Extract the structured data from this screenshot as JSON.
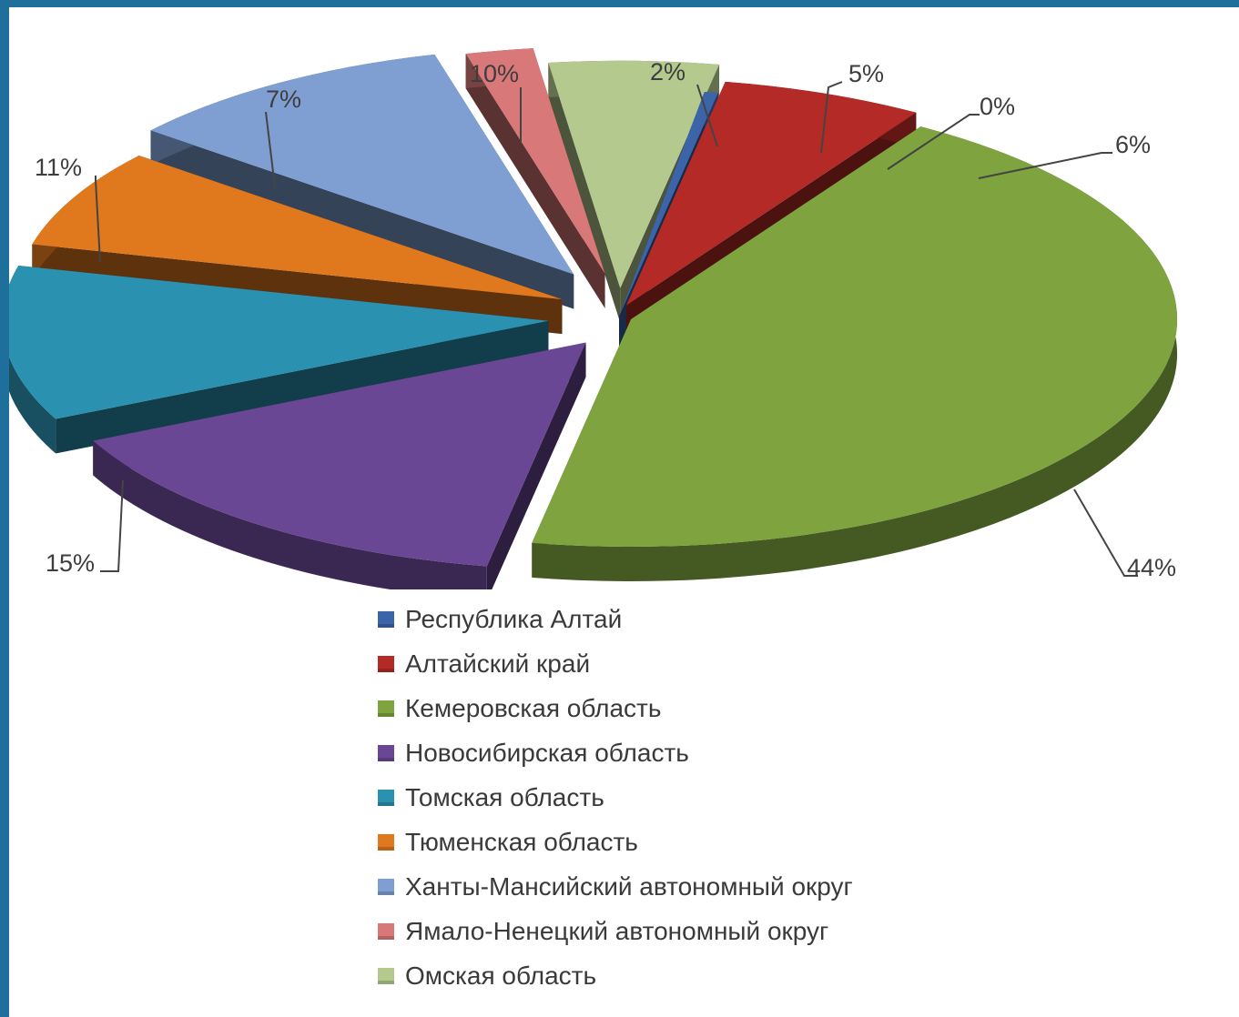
{
  "chart_data": {
    "type": "pie",
    "title": "",
    "series": [
      {
        "name": "Республика Алтай",
        "value": 0,
        "label": "0%",
        "color": "#3c64a8"
      },
      {
        "name": "Алтайский край",
        "value": 6,
        "label": "6%",
        "color": "#b42a26"
      },
      {
        "name": "Кемеровская область",
        "value": 44,
        "label": "44%",
        "color": "#7ea33f"
      },
      {
        "name": "Новосибирская область",
        "value": 15,
        "label": "15%",
        "color": "#6a4795"
      },
      {
        "name": "Томская область",
        "value": 11,
        "label": "11%",
        "color": "#2b91b0"
      },
      {
        "name": "Тюменская область",
        "value": 7,
        "label": "7%",
        "color": "#e0781e"
      },
      {
        "name": "Ханты-Мансийский автономный округ",
        "value": 10,
        "label": "10%",
        "color": "#7f9fd2"
      },
      {
        "name": "Ямало-Ненецкий автономный округ",
        "value": 2,
        "label": "2%",
        "color": "#d97878"
      },
      {
        "name": "Омская область",
        "value": 5,
        "label": "5%",
        "color": "#b4c98e"
      }
    ],
    "legend_position": "bottom",
    "exploded": true,
    "three_d": true
  }
}
